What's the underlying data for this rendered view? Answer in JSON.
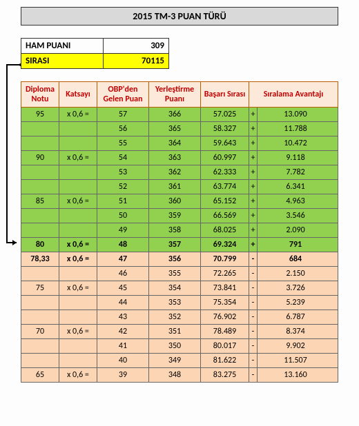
{
  "title": "2015 TM-3 PUAN TÜRÜ",
  "summary": {
    "ham_label": "HAM PUANI",
    "ham_value": "309",
    "sira_label": "SIRASI",
    "sira_value": "70115"
  },
  "columns": {
    "c1": "Diploma Notu",
    "c2": "Katsayı",
    "c3": "OBP'den Gelen Puan",
    "c4": "Yerleştirme Puanı",
    "c5": "Başarı Sırası",
    "c6": "Sıralama Avantajı"
  },
  "rows": [
    {
      "dn": "95",
      "k": "x 0,6 =",
      "obp": "57",
      "yp": "366",
      "bs": "57.025",
      "sign": "+",
      "adv": "13.090",
      "cls": "row-green"
    },
    {
      "dn": "",
      "k": "",
      "obp": "56",
      "yp": "365",
      "bs": "58.327",
      "sign": "+",
      "adv": "11.788",
      "cls": "row-green"
    },
    {
      "dn": "",
      "k": "",
      "obp": "55",
      "yp": "364",
      "bs": "59.643",
      "sign": "+",
      "adv": "10.472",
      "cls": "row-green"
    },
    {
      "dn": "90",
      "k": "x 0,6 =",
      "obp": "54",
      "yp": "363",
      "bs": "60.997",
      "sign": "+",
      "adv": "9.118",
      "cls": "row-green"
    },
    {
      "dn": "",
      "k": "",
      "obp": "53",
      "yp": "362",
      "bs": "62.333",
      "sign": "+",
      "adv": "7.782",
      "cls": "row-green"
    },
    {
      "dn": "",
      "k": "",
      "obp": "52",
      "yp": "361",
      "bs": "63.774",
      "sign": "+",
      "adv": "6.341",
      "cls": "row-green"
    },
    {
      "dn": "85",
      "k": "x 0,6 =",
      "obp": "51",
      "yp": "360",
      "bs": "65.152",
      "sign": "+",
      "adv": "4.963",
      "cls": "row-green"
    },
    {
      "dn": "",
      "k": "",
      "obp": "50",
      "yp": "359",
      "bs": "66.569",
      "sign": "+",
      "adv": "3.546",
      "cls": "row-green"
    },
    {
      "dn": "",
      "k": "",
      "obp": "49",
      "yp": "358",
      "bs": "68.025",
      "sign": "+",
      "adv": "2.090",
      "cls": "row-green"
    },
    {
      "dn": "80",
      "k": "x 0,6 =",
      "obp": "48",
      "yp": "357",
      "bs": "69.324",
      "sign": "+",
      "adv": "791",
      "cls": "row-green bold"
    },
    {
      "dn": "78,33",
      "k": "x 0,6 =",
      "obp": "47",
      "yp": "356",
      "bs": "70.799",
      "sign": "-",
      "adv": "684",
      "cls": "row-orange bold"
    },
    {
      "dn": "",
      "k": "",
      "obp": "46",
      "yp": "355",
      "bs": "72.265",
      "sign": "-",
      "adv": "2.150",
      "cls": "row-orange"
    },
    {
      "dn": "75",
      "k": "x 0,6 =",
      "obp": "45",
      "yp": "354",
      "bs": "73.841",
      "sign": "-",
      "adv": "3.726",
      "cls": "row-orange"
    },
    {
      "dn": "",
      "k": "",
      "obp": "44",
      "yp": "353",
      "bs": "75.354",
      "sign": "-",
      "adv": "5.239",
      "cls": "row-orange"
    },
    {
      "dn": "",
      "k": "",
      "obp": "43",
      "yp": "352",
      "bs": "76.902",
      "sign": "-",
      "adv": "6.787",
      "cls": "row-orange"
    },
    {
      "dn": "70",
      "k": "x 0,6 =",
      "obp": "42",
      "yp": "351",
      "bs": "78.489",
      "sign": "-",
      "adv": "8.374",
      "cls": "row-orange"
    },
    {
      "dn": "",
      "k": "",
      "obp": "41",
      "yp": "350",
      "bs": "80.017",
      "sign": "-",
      "adv": "9.902",
      "cls": "row-orange"
    },
    {
      "dn": "",
      "k": "",
      "obp": "40",
      "yp": "349",
      "bs": "81.622",
      "sign": "-",
      "adv": "11.507",
      "cls": "row-orange"
    },
    {
      "dn": "65",
      "k": "x 0,6 =",
      "obp": "39",
      "yp": "348",
      "bs": "83.275",
      "sign": "-",
      "adv": "13.160",
      "cls": "row-orange"
    }
  ],
  "col_widths": {
    "c1": 55,
    "c2": 55,
    "c3": 75,
    "c4": 75,
    "c5": 70,
    "sign": 18,
    "adv": 70
  },
  "colors": {
    "title_bg": "#d9d9d9",
    "header_bg": "#fde9d9",
    "header_fg": "#c00000",
    "green": "#92d050",
    "orange": "#fcd5b4",
    "yellow": "#ffff00"
  }
}
